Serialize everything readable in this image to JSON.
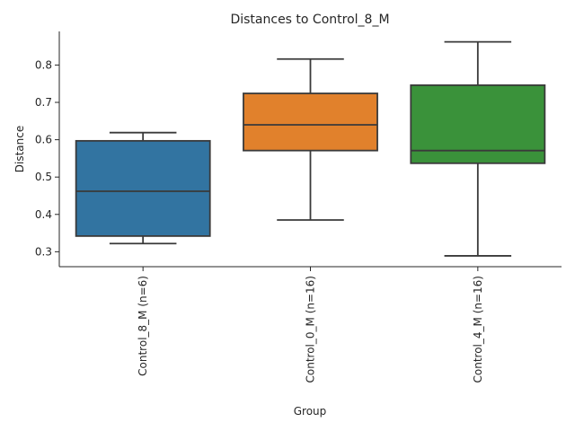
{
  "chart_data": {
    "type": "box",
    "title": "Distances to Control_8_M",
    "xlabel": "Group",
    "ylabel": "Distance",
    "ylim": [
      0.26,
      0.89
    ],
    "yticks": [
      0.3,
      0.4,
      0.5,
      0.6,
      0.7,
      0.8
    ],
    "ytick_labels": [
      "0.3",
      "0.4",
      "0.5",
      "0.6",
      "0.7",
      "0.8"
    ],
    "grid": false,
    "categories": [
      "Control_8_M (n=6)",
      "Control_0_M (n=16)",
      "Control_4_M (n=16)"
    ],
    "boxes": [
      {
        "category": "Control_8_M (n=6)",
        "min": 0.322,
        "q1": 0.342,
        "median": 0.462,
        "q3": 0.597,
        "max": 0.619,
        "color": "#3274a1"
      },
      {
        "category": "Control_0_M (n=16)",
        "min": 0.385,
        "q1": 0.571,
        "median": 0.64,
        "q3": 0.724,
        "max": 0.816,
        "color": "#e1812c"
      },
      {
        "category": "Control_4_M (n=16)",
        "min": 0.289,
        "q1": 0.537,
        "median": 0.571,
        "q3": 0.746,
        "max": 0.862,
        "color": "#3a923a"
      }
    ]
  }
}
